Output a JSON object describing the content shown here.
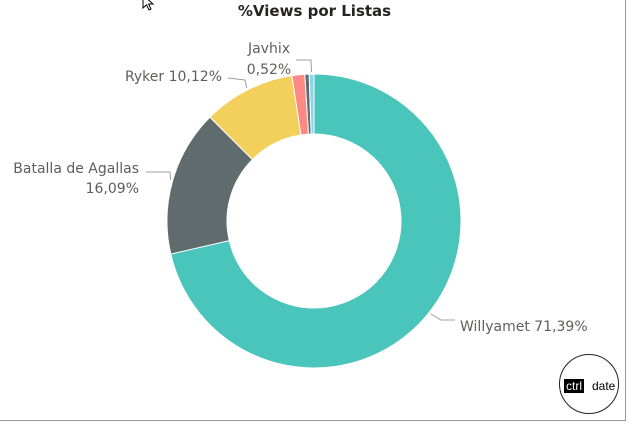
{
  "chart_data": {
    "type": "pie",
    "variant": "donut",
    "title": "%Views por Listas",
    "slices": [
      {
        "name": "Willyamet",
        "label": "Willyamet 71,39%",
        "value": 71.39,
        "color": "#4ac5bb"
      },
      {
        "name": "Batalla de Agallas",
        "label": [
          "Batalla de Agallas",
          "16,09%"
        ],
        "value": 16.09,
        "color": "#5f6b6d"
      },
      {
        "name": "Ryker",
        "label": "Ryker 10,12%",
        "value": 10.12,
        "color": "#f2d05b"
      },
      {
        "name": "",
        "label": "",
        "value": 1.4,
        "color": "#fd8884"
      },
      {
        "name": "",
        "label": "",
        "value": 0.48,
        "color": "#5f6b6d"
      },
      {
        "name": "Javhix",
        "label": [
          "Javhix",
          "0,52%"
        ],
        "value": 0.52,
        "color": "#8ad4eb"
      }
    ]
  },
  "logo": {
    "ctrl": "ctrl",
    "date": "date"
  },
  "cursor": {
    "icon": "mouse-pointer-icon"
  }
}
